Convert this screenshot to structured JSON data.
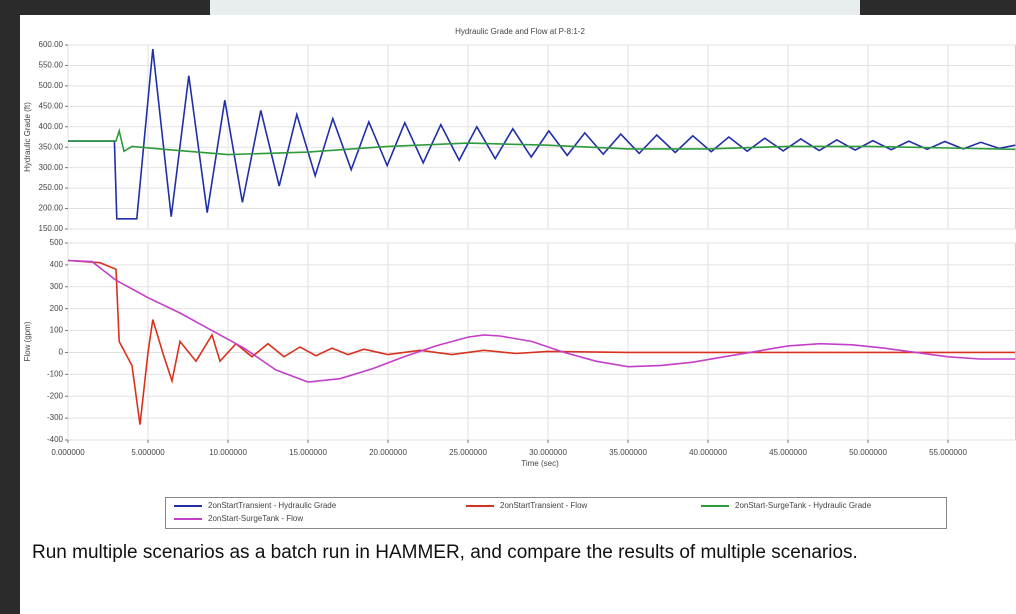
{
  "chart_data": [
    {
      "type": "line",
      "title": "Hydraulic Grade and Flow at P-8:1-2",
      "ylabel": "Hydraulic Grade (ft)",
      "xlim": [
        0,
        59.25
      ],
      "ylim": [
        150,
        600
      ],
      "grid": true,
      "yticks": [
        {
          "value": 150,
          "label": "150.00"
        },
        {
          "value": 200,
          "label": "200.00"
        },
        {
          "value": 250,
          "label": "250.00"
        },
        {
          "value": 300,
          "label": "300.00"
        },
        {
          "value": 350,
          "label": "350.00"
        },
        {
          "value": 400,
          "label": "400.00"
        },
        {
          "value": 450,
          "label": "450.00"
        },
        {
          "value": 500,
          "label": "500.00"
        },
        {
          "value": 550,
          "label": "550.00"
        },
        {
          "value": 600,
          "label": "600.00"
        }
      ],
      "series": [
        {
          "name": "2onStartTransient - Hydraulic Grade",
          "color": "#1f2fa8",
          "x": [
            0,
            2.9,
            3.05,
            4.3,
            5.3,
            6.45,
            7.55,
            8.7,
            9.8,
            10.9,
            12.05,
            13.2,
            14.3,
            15.45,
            16.55,
            17.7,
            18.8,
            19.95,
            21.05,
            22.2,
            23.3,
            24.45,
            25.55,
            26.7,
            27.8,
            28.95,
            30.05,
            31.2,
            32.3,
            33.45,
            34.55,
            35.7,
            36.8,
            37.95,
            39.05,
            40.2,
            41.3,
            42.45,
            43.55,
            44.7,
            45.8,
            46.95,
            48.05,
            49.2,
            50.3,
            51.45,
            52.55,
            53.7,
            54.8,
            55.95,
            57.05,
            58.2,
            59.2
          ],
          "values": [
            365,
            365,
            175,
            175,
            590,
            180,
            525,
            190,
            465,
            215,
            440,
            255,
            430,
            280,
            420,
            295,
            412,
            305,
            410,
            312,
            405,
            318,
            400,
            322,
            395,
            326,
            390,
            330,
            385,
            333,
            382,
            335,
            380,
            337,
            378,
            339,
            375,
            340,
            372,
            341,
            370,
            342,
            368,
            343,
            366,
            344,
            365,
            345,
            364,
            346,
            362,
            347,
            355
          ]
        },
        {
          "name": "2onStart-SurgeTank - Hydraulic Grade",
          "color": "#2e9a3c",
          "x": [
            0,
            3,
            3.2,
            3.5,
            4,
            6,
            10,
            15,
            20,
            25,
            30,
            35,
            40,
            45,
            50,
            55,
            59.2
          ],
          "values": [
            365,
            365,
            390,
            340,
            352,
            345,
            332,
            338,
            352,
            360,
            355,
            346,
            346,
            352,
            352,
            348,
            345
          ]
        }
      ]
    },
    {
      "type": "line",
      "ylabel": "Flow (gpm)",
      "xlabel": "Time (sec)",
      "xlim": [
        0,
        59.25
      ],
      "ylim": [
        -400,
        500
      ],
      "grid": true,
      "yticks": [
        -400,
        -300,
        -200,
        -100,
        0,
        100,
        200,
        300,
        400,
        500
      ],
      "xticks": [
        {
          "value": 0,
          "label": "0.000000"
        },
        {
          "value": 5,
          "label": "5.000000"
        },
        {
          "value": 10,
          "label": "10.000000"
        },
        {
          "value": 15,
          "label": "15.000000"
        },
        {
          "value": 20,
          "label": "20.000000"
        },
        {
          "value": 25,
          "label": "25.000000"
        },
        {
          "value": 30,
          "label": "30.000000"
        },
        {
          "value": 35,
          "label": "35.000000"
        },
        {
          "value": 40,
          "label": "40.000000"
        },
        {
          "value": 45,
          "label": "45.000000"
        },
        {
          "value": 50,
          "label": "50.000000"
        },
        {
          "value": 55,
          "label": "55.000000"
        }
      ],
      "series": [
        {
          "name": "2onStartTransient - Flow",
          "color": "#d8321e",
          "x": [
            0,
            2,
            3,
            3.2,
            4,
            4.5,
            5,
            5.3,
            6,
            6.5,
            7,
            8,
            9,
            9.5,
            10.5,
            11.5,
            12.5,
            13.5,
            14.5,
            15.5,
            16.5,
            17.5,
            18.5,
            20,
            22,
            24,
            26,
            28,
            30,
            35,
            40,
            45,
            50,
            55,
            59.2
          ],
          "values": [
            420,
            410,
            380,
            50,
            -60,
            -330,
            0,
            150,
            -20,
            -130,
            50,
            -40,
            80,
            -40,
            40,
            -20,
            40,
            -20,
            25,
            -15,
            20,
            -10,
            15,
            -10,
            10,
            -10,
            10,
            -5,
            5,
            0,
            0,
            0,
            0,
            0,
            0
          ]
        },
        {
          "name": "2onStart-SurgeTank - Flow",
          "color": "#c43fc9",
          "x": [
            0,
            1.5,
            3,
            5,
            7,
            9,
            11,
            13,
            15,
            17,
            19,
            21,
            23,
            25,
            26,
            27,
            29,
            31,
            33,
            35,
            37,
            39,
            41,
            43,
            45,
            47,
            49,
            51,
            53,
            55,
            57,
            59.2
          ],
          "values": [
            420,
            415,
            330,
            250,
            180,
            100,
            20,
            -80,
            -135,
            -120,
            -75,
            -20,
            30,
            70,
            80,
            75,
            50,
            0,
            -40,
            -65,
            -60,
            -45,
            -20,
            5,
            30,
            40,
            35,
            20,
            0,
            -20,
            -30,
            -30
          ]
        }
      ]
    }
  ],
  "caption": "Run multiple scenarios as a batch run in HAMMER, and compare the results of multiple scenarios."
}
